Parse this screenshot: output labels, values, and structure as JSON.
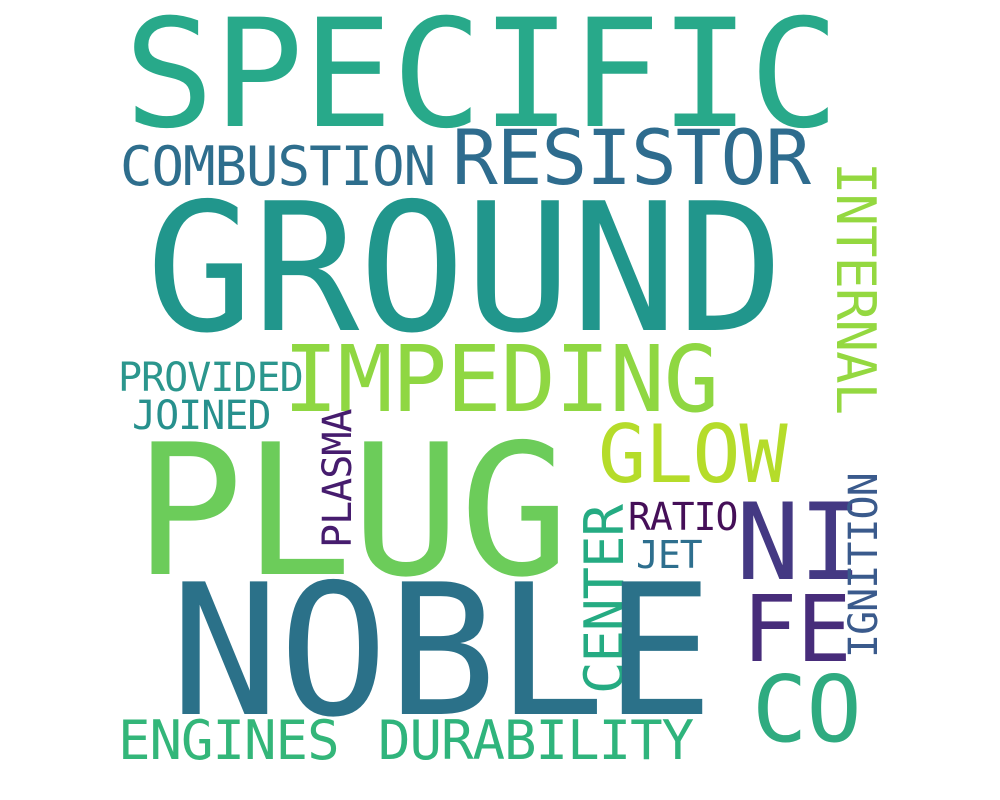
{
  "words": {
    "specific": {
      "text": "SPECIFIC",
      "color": "#28a98a"
    },
    "ground": {
      "text": "GROUND",
      "color": "#21968c"
    },
    "plug": {
      "text": "PLUG",
      "color": "#6ccc5a"
    },
    "noble": {
      "text": "NOBLE",
      "color": "#2b7189"
    },
    "impeding": {
      "text": "IMPEDING",
      "color": "#8fd742"
    },
    "resistor": {
      "text": "RESISTOR",
      "color": "#2e6c8e"
    },
    "combustion": {
      "text": "COMBUSTION",
      "color": "#2e6e8d"
    },
    "glow": {
      "text": "GLOW",
      "color": "#b5dc2a"
    },
    "ni": {
      "text": "NI",
      "color": "#443983"
    },
    "fe": {
      "text": "FE",
      "color": "#472c7a"
    },
    "co": {
      "text": "CO",
      "color": "#2fab80"
    },
    "internal": {
      "text": "INTERNAL",
      "color": "#94d840"
    },
    "provided": {
      "text": "PROVIDED",
      "color": "#2b968d"
    },
    "joined": {
      "text": "JOINED",
      "color": "#27908d"
    },
    "plasma": {
      "text": "PLASMA",
      "color": "#461c6e"
    },
    "center": {
      "text": "CENTER",
      "color": "#25ab82"
    },
    "ratio": {
      "text": "RATIO",
      "color": "#450f58"
    },
    "jet": {
      "text": "JET",
      "color": "#2e6f8e"
    },
    "ignition": {
      "text": "IGNITION",
      "color": "#3a5a8c"
    },
    "engines": {
      "text": "ENGINES",
      "color": "#33b679"
    },
    "durability": {
      "text": "DURABILITY",
      "color": "#2fb47c"
    }
  }
}
